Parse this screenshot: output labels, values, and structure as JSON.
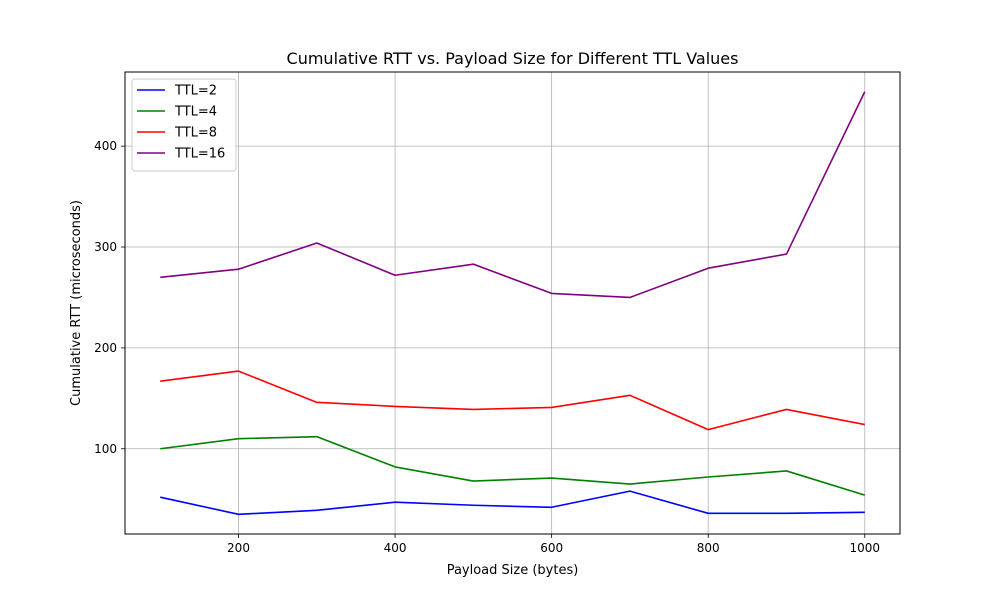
{
  "chart_data": {
    "type": "line",
    "title": "Cumulative RTT vs. Payload Size for Different TTL Values",
    "xlabel": "Payload Size (bytes)",
    "ylabel": "Cumulative RTT (microseconds)",
    "x": [
      100,
      200,
      300,
      400,
      500,
      600,
      700,
      800,
      900,
      1000
    ],
    "xlim": [
      55,
      1045
    ],
    "ylim": [
      15.5,
      473.5
    ],
    "xticks": [
      200,
      400,
      600,
      800,
      1000
    ],
    "yticks": [
      100,
      200,
      300,
      400
    ],
    "grid": true,
    "legend_position": "top-left",
    "series": [
      {
        "name": "TTL=2",
        "color": "#0000ff",
        "values": [
          52,
          35,
          39,
          47,
          44,
          42,
          58,
          36,
          36,
          37
        ]
      },
      {
        "name": "TTL=4",
        "color": "#008000",
        "values": [
          100,
          110,
          112,
          82,
          68,
          71,
          65,
          72,
          78,
          54
        ]
      },
      {
        "name": "TTL=8",
        "color": "#ff0000",
        "values": [
          167,
          177,
          146,
          142,
          139,
          141,
          153,
          119,
          139,
          124
        ]
      },
      {
        "name": "TTL=16",
        "color": "#800080",
        "values": [
          270,
          278,
          304,
          272,
          283,
          254,
          250,
          279,
          293,
          454
        ]
      }
    ]
  }
}
